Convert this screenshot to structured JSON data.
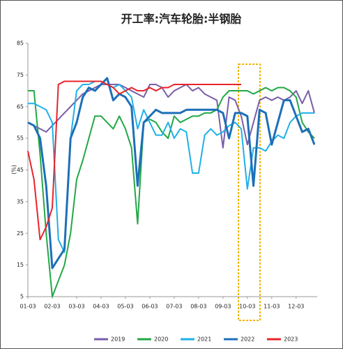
{
  "chart_data": {
    "type": "line",
    "title": "开工率:汽车轮胎:半钢胎",
    "y_label": "(%)",
    "categories": [
      "01-03",
      null,
      null,
      null,
      "02-03",
      null,
      null,
      null,
      "03-03",
      null,
      null,
      null,
      "04-03",
      null,
      null,
      null,
      "05-03",
      null,
      null,
      null,
      "06-03",
      null,
      null,
      null,
      "07-03",
      null,
      null,
      null,
      "08-03",
      null,
      null,
      null,
      "09-03",
      null,
      null,
      null,
      "10-03",
      null,
      null,
      null,
      "11-03",
      null,
      null,
      null,
      "12-03",
      null,
      null,
      null
    ],
    "ylim": [
      5,
      85
    ],
    "yticks": [
      5,
      15,
      25,
      35,
      45,
      55,
      65,
      75,
      85
    ],
    "series": [
      {
        "name": "2019",
        "color": "#7a5ea8",
        "values": [
          60,
          59,
          58,
          57,
          59,
          61,
          63,
          65,
          67,
          69,
          70,
          71,
          72,
          72,
          72,
          72,
          71,
          70,
          69,
          68,
          72,
          72,
          71,
          68,
          70,
          71,
          72,
          70,
          71,
          69,
          68,
          67,
          52,
          68,
          67,
          62,
          53,
          60,
          67,
          68,
          67,
          68,
          67,
          68,
          70,
          66,
          70,
          63
        ]
      },
      {
        "name": "2020",
        "color": "#22a845",
        "values": [
          70,
          70,
          50,
          25,
          5,
          10,
          15,
          25,
          42,
          48,
          55,
          62,
          62,
          60,
          58,
          62,
          58,
          52,
          28,
          60,
          61,
          60,
          57,
          55,
          62,
          60,
          61,
          62,
          62,
          63,
          63,
          64,
          68,
          70,
          70,
          70,
          70,
          69,
          70,
          71,
          70,
          71,
          71,
          70,
          68,
          60,
          57,
          55
        ]
      },
      {
        "name": "2021",
        "color": "#1fb0e8",
        "values": [
          66,
          66,
          65,
          64,
          60,
          23,
          19,
          55,
          70,
          72,
          72,
          73,
          73,
          72,
          71,
          72,
          70,
          68,
          58,
          64,
          60,
          56,
          56,
          60,
          55,
          58,
          57,
          44,
          44,
          56,
          58,
          56,
          57,
          59,
          60,
          58,
          39,
          52,
          52,
          51,
          54,
          56,
          55,
          60,
          62,
          63,
          63,
          63
        ]
      },
      {
        "name": "2022",
        "color": "#1d6fb8",
        "values": [
          60,
          59,
          55,
          40,
          14,
          17,
          20,
          55,
          60,
          68,
          71,
          70,
          72,
          74,
          67,
          69,
          68,
          65,
          40,
          60,
          62,
          64,
          63,
          63,
          63,
          63,
          64,
          64,
          64,
          64,
          64,
          64,
          63,
          55,
          63,
          63,
          62,
          40,
          64,
          63,
          53,
          60,
          67,
          67,
          62,
          57,
          58,
          53
        ]
      },
      {
        "name": "2023",
        "color": "#e8242a",
        "values": [
          51,
          42,
          23,
          27,
          33,
          72,
          73,
          73,
          73,
          73,
          73,
          73,
          73,
          72,
          71,
          69,
          70,
          71,
          70,
          70,
          71,
          70,
          71,
          71,
          72,
          72,
          72,
          72,
          72,
          72,
          72,
          72,
          72,
          72,
          72,
          72,
          null,
          null,
          null,
          null,
          null,
          null,
          null,
          null,
          null,
          null,
          null,
          null
        ]
      }
    ]
  }
}
